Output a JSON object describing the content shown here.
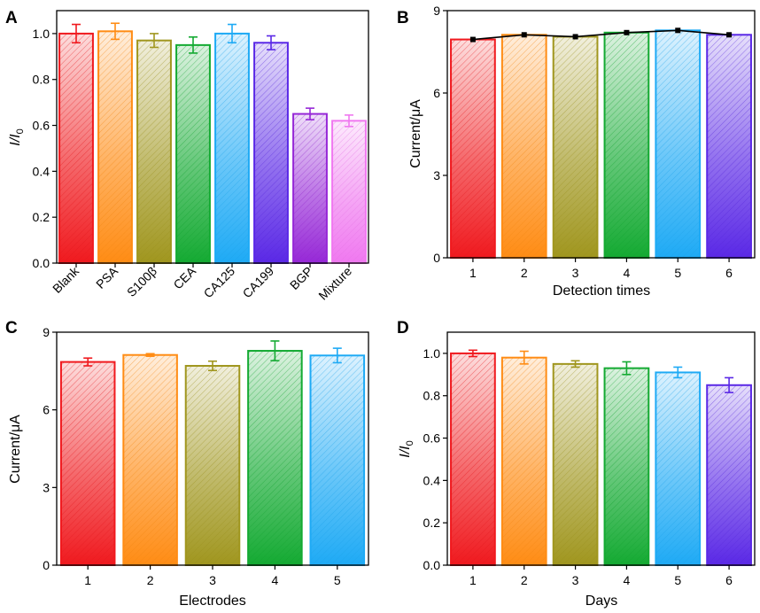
{
  "chart_data": [
    {
      "panel": "A",
      "type": "bar",
      "ylabel": "I/I0",
      "xlabel": "",
      "categories": [
        "Blank",
        "PSA",
        "S100β",
        "CEA",
        "CA125",
        "CA199",
        "BGP",
        "Mixture"
      ],
      "values": [
        1.0,
        1.01,
        0.97,
        0.95,
        1.0,
        0.96,
        0.65,
        0.62
      ],
      "errors": [
        0.04,
        0.035,
        0.03,
        0.035,
        0.04,
        0.03,
        0.025,
        0.025
      ],
      "colors": [
        "#f0191e",
        "#ff8c14",
        "#a0961e",
        "#14aa32",
        "#1eaaf5",
        "#5a28e6",
        "#9628d7",
        "#f078f0"
      ],
      "ylim": [
        0,
        1.1
      ],
      "yticks": [
        "0.0",
        "0.2",
        "0.4",
        "0.6",
        "0.8",
        "1.0"
      ],
      "rotated_ticks": true
    },
    {
      "panel": "B",
      "type": "bar",
      "ylabel": "Current/μA",
      "xlabel": "Detection times",
      "categories": [
        "1",
        "2",
        "3",
        "4",
        "5",
        "6"
      ],
      "values": [
        7.95,
        8.12,
        8.05,
        8.2,
        8.28,
        8.12
      ],
      "colors": [
        "#f0191e",
        "#ff8c14",
        "#a0961e",
        "#14aa32",
        "#1eaaf5",
        "#5a28e6"
      ],
      "ylim": [
        0,
        9
      ],
      "yticks": [
        "0",
        "3",
        "6",
        "9"
      ],
      "line_overlay": true
    },
    {
      "panel": "C",
      "type": "bar",
      "ylabel": "Current/μA",
      "xlabel": "Electrodes",
      "categories": [
        "1",
        "2",
        "3",
        "4",
        "5"
      ],
      "values": [
        7.85,
        8.12,
        7.7,
        8.28,
        8.1
      ],
      "errors": [
        0.15,
        0.05,
        0.18,
        0.38,
        0.28
      ],
      "colors": [
        "#f0191e",
        "#ff8c14",
        "#a0961e",
        "#14aa32",
        "#1eaaf5"
      ],
      "ylim": [
        0,
        9
      ],
      "yticks": [
        "0",
        "3",
        "6",
        "9"
      ]
    },
    {
      "panel": "D",
      "type": "bar",
      "ylabel": "I/I0",
      "xlabel": "Days",
      "categories": [
        "1",
        "2",
        "3",
        "4",
        "5",
        "6"
      ],
      "values": [
        1.0,
        0.98,
        0.95,
        0.93,
        0.91,
        0.85
      ],
      "errors": [
        0.015,
        0.03,
        0.015,
        0.03,
        0.025,
        0.035
      ],
      "colors": [
        "#f0191e",
        "#ff8c14",
        "#a0961e",
        "#14aa32",
        "#1eaaf5",
        "#5a28e6"
      ],
      "ylim": [
        0,
        1.1
      ],
      "yticks": [
        "0.0",
        "0.2",
        "0.4",
        "0.6",
        "0.8",
        "1.0"
      ]
    }
  ]
}
